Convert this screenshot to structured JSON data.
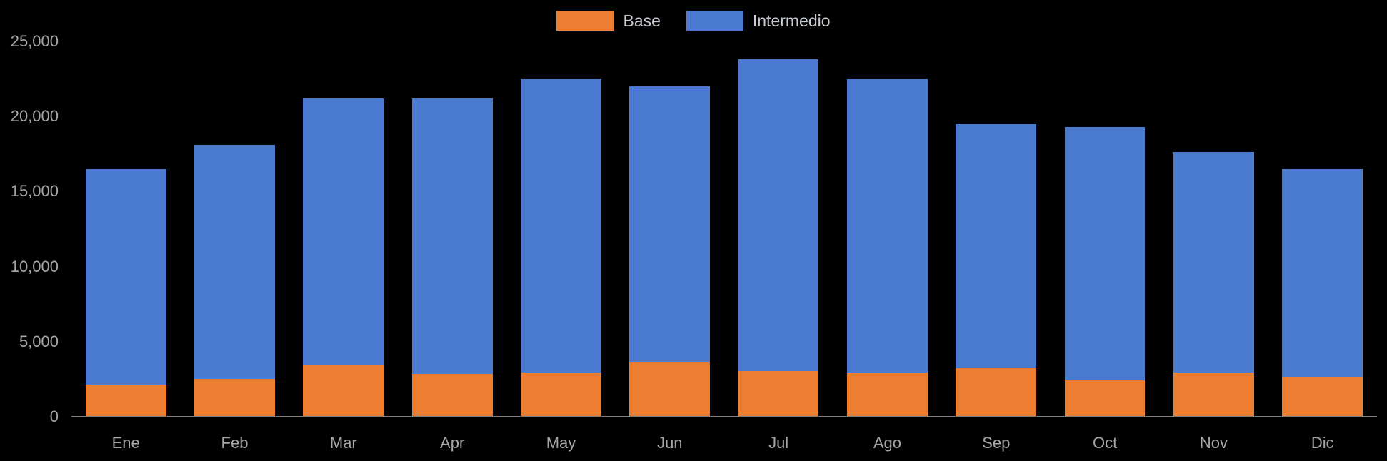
{
  "legend": {
    "items": [
      {
        "label": "Base",
        "color": "#ED7D31"
      },
      {
        "label": "Intermedio",
        "color": "#4A7BD0"
      }
    ]
  },
  "chart_data": {
    "type": "bar",
    "stacked": true,
    "title": "",
    "xlabel": "",
    "ylabel": "",
    "categories": [
      "Ene",
      "Feb",
      "Mar",
      "Apr",
      "May",
      "Jun",
      "Jul",
      "Ago",
      "Sep",
      "Oct",
      "Nov",
      "Dic"
    ],
    "series": [
      {
        "name": "Base",
        "color": "#ED7D31",
        "values": [
          2100,
          2500,
          3400,
          2800,
          2900,
          3600,
          3000,
          2900,
          3200,
          2400,
          2900,
          2600
        ]
      },
      {
        "name": "Intermedio",
        "color": "#4A7BD0",
        "values": [
          14400,
          15600,
          17800,
          18400,
          19600,
          18400,
          20800,
          19600,
          16300,
          16900,
          14700,
          13900
        ]
      }
    ],
    "totals": [
      16500,
      18100,
      21200,
      21200,
      22500,
      22000,
      23800,
      22500,
      19500,
      19300,
      17600,
      16500
    ],
    "ylim": [
      0,
      25000
    ],
    "yticks": [
      0,
      5000,
      10000,
      15000,
      20000,
      25000
    ],
    "ytick_labels": [
      "0",
      "5,000",
      "10,000",
      "15,000",
      "20,000",
      "25,000"
    ],
    "legend_position": "top-center",
    "grid": false,
    "background": "#000000",
    "text_color": "#a6a6a6"
  }
}
